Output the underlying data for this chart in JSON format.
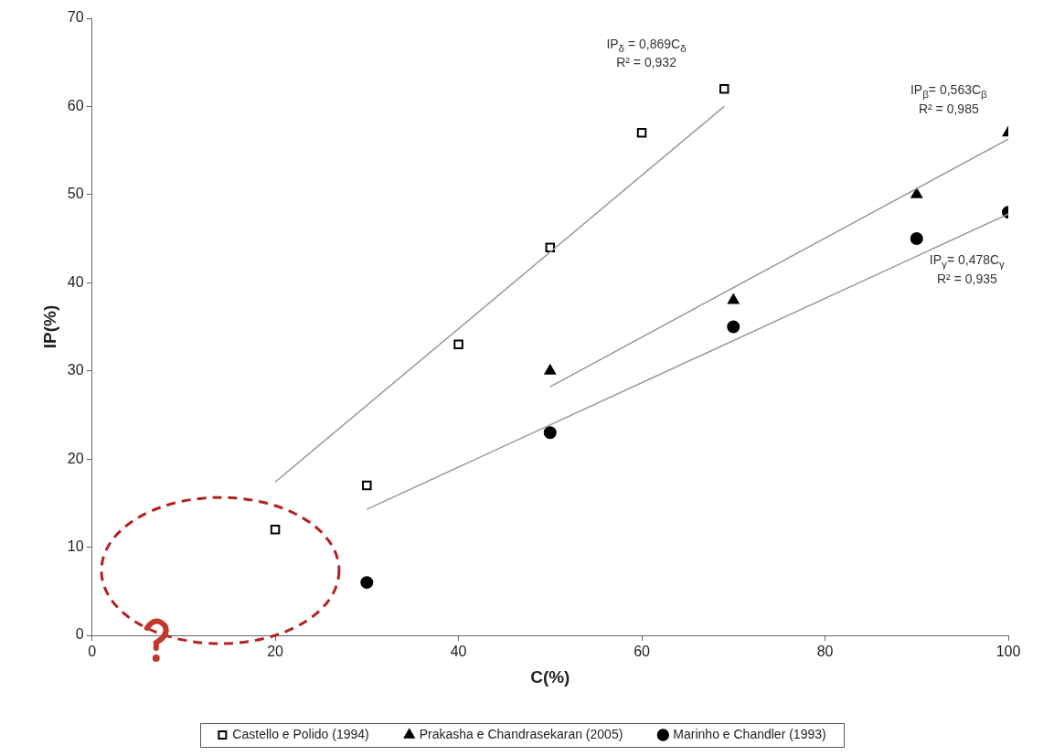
{
  "chart_data": {
    "type": "scatter",
    "xlabel": "C(%)",
    "ylabel": "IP(%)",
    "xlim": [
      0,
      100
    ],
    "xticks": [
      0,
      20,
      40,
      60,
      80,
      100
    ],
    "ylim": [
      0,
      70
    ],
    "yticks": [
      0,
      10,
      20,
      30,
      40,
      50,
      60,
      70
    ],
    "grid": false,
    "legend": "bottom",
    "series": [
      {
        "name": "Castello e Polido (1994)",
        "color": "#000000",
        "marker": "square",
        "x": [
          20,
          30,
          40,
          50,
          60,
          69
        ],
        "values": [
          12,
          17,
          33,
          44,
          57,
          62
        ]
      },
      {
        "name": "Prakasha e Chandrasekaran (2005)",
        "color": "#000000",
        "marker": "triangle",
        "x": [
          50,
          70,
          90,
          100
        ],
        "values": [
          30,
          38,
          50,
          57
        ]
      },
      {
        "name": "Marinho e Chandler (1993)",
        "color": "#000000",
        "marker": "circle",
        "x": [
          30,
          50,
          70,
          90,
          100
        ],
        "values": [
          6,
          23,
          35,
          45,
          48
        ]
      },
      {
        "type": "line",
        "color": "#999999",
        "marker": "none",
        "x": [
          20,
          69
        ],
        "values": [
          17.4,
          60
        ]
      },
      {
        "type": "line",
        "color": "#999999",
        "marker": "none",
        "x": [
          50,
          100
        ],
        "values": [
          28.2,
          56.3
        ]
      },
      {
        "type": "line",
        "color": "#999999",
        "marker": "none",
        "x": [
          30,
          100
        ],
        "values": [
          14.3,
          47.8
        ]
      }
    ],
    "annotations": [
      "IP$_{δ}$ = 0,869C$_{δ}$\nR² = 0,932",
      "IP$_{β}$= 0,563C$_{β}$\nR² = 0,985",
      "IP$_{γ}$= 0,478C$_{γ}$\nR² = 0,935"
    ]
  }
}
